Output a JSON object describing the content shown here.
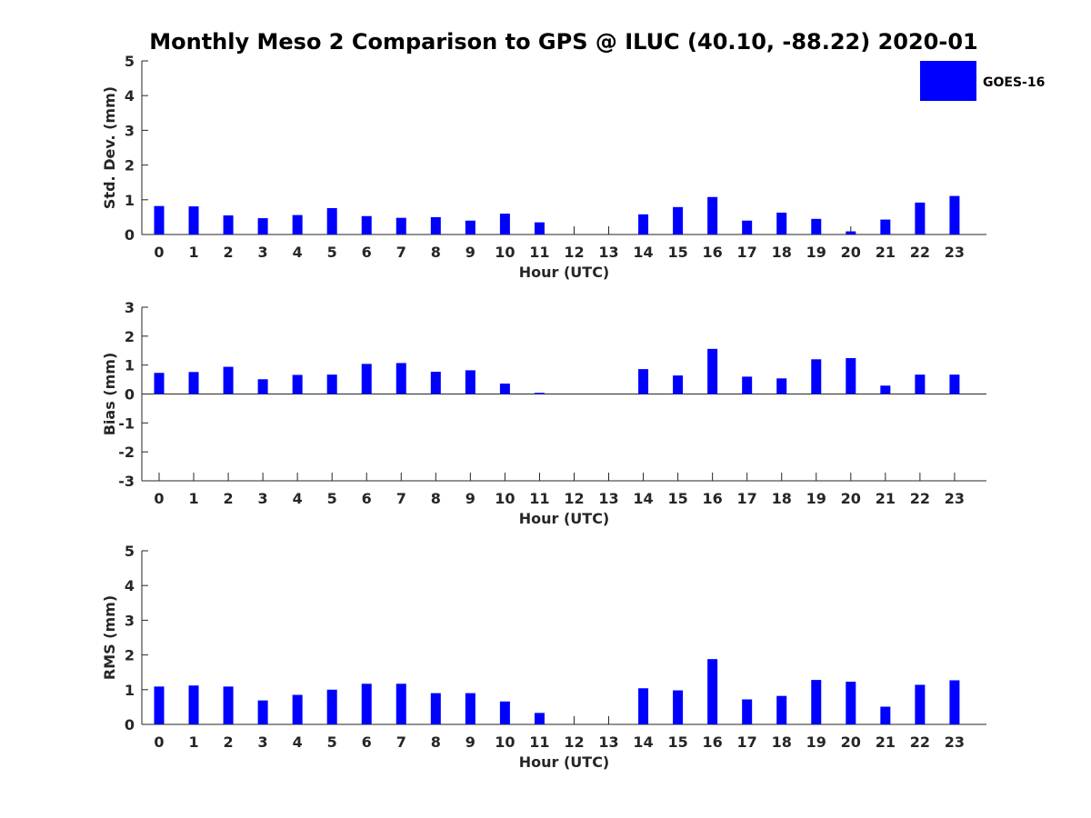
{
  "title": "Monthly Meso 2 Comparison to GPS @ ILUC (40.10, -88.22) 2020-01",
  "legend": {
    "label": "GOES-16",
    "color": "#0000ff",
    "placement": "top-right"
  },
  "chart_data": [
    {
      "type": "bar",
      "ylabel": "Std. Dev. (mm)",
      "xlabel": "Hour (UTC)",
      "ylim": [
        0,
        5
      ],
      "yticks": [
        0,
        1,
        2,
        3,
        4,
        5
      ],
      "categories": [
        0,
        1,
        2,
        3,
        4,
        5,
        6,
        7,
        8,
        9,
        10,
        11,
        12,
        13,
        14,
        15,
        16,
        17,
        18,
        19,
        20,
        21,
        22,
        23
      ],
      "values": [
        0.82,
        0.81,
        0.55,
        0.47,
        0.56,
        0.76,
        0.53,
        0.48,
        0.5,
        0.4,
        0.6,
        0.35,
        null,
        null,
        0.58,
        0.79,
        1.08,
        0.4,
        0.63,
        0.45,
        0.09,
        0.43,
        0.92,
        1.11
      ],
      "series": [
        {
          "name": "GOES-16"
        }
      ]
    },
    {
      "type": "bar",
      "ylabel": "Bias (mm)",
      "xlabel": "Hour (UTC)",
      "ylim": [
        -3,
        3
      ],
      "yticks": [
        -3,
        -2,
        -1,
        0,
        1,
        2,
        3
      ],
      "categories": [
        0,
        1,
        2,
        3,
        4,
        5,
        6,
        7,
        8,
        9,
        10,
        11,
        12,
        13,
        14,
        15,
        16,
        17,
        18,
        19,
        20,
        21,
        22,
        23
      ],
      "values": [
        0.73,
        0.76,
        0.94,
        0.51,
        0.66,
        0.67,
        1.04,
        1.07,
        0.77,
        0.82,
        0.36,
        0.04,
        null,
        null,
        0.86,
        0.64,
        1.56,
        0.6,
        0.54,
        1.2,
        1.24,
        0.29,
        0.67,
        0.67
      ],
      "series": [
        {
          "name": "GOES-16"
        }
      ]
    },
    {
      "type": "bar",
      "ylabel": "RMS (mm)",
      "xlabel": "Hour (UTC)",
      "ylim": [
        0,
        5
      ],
      "yticks": [
        0,
        1,
        2,
        3,
        4,
        5
      ],
      "categories": [
        0,
        1,
        2,
        3,
        4,
        5,
        6,
        7,
        8,
        9,
        10,
        11,
        12,
        13,
        14,
        15,
        16,
        17,
        18,
        19,
        20,
        21,
        22,
        23
      ],
      "values": [
        1.09,
        1.12,
        1.09,
        0.69,
        0.85,
        1.0,
        1.17,
        1.17,
        0.9,
        0.9,
        0.66,
        0.33,
        null,
        null,
        1.04,
        0.98,
        1.88,
        0.72,
        0.82,
        1.28,
        1.23,
        0.51,
        1.14,
        1.27
      ],
      "series": [
        {
          "name": "GOES-16"
        }
      ]
    }
  ]
}
